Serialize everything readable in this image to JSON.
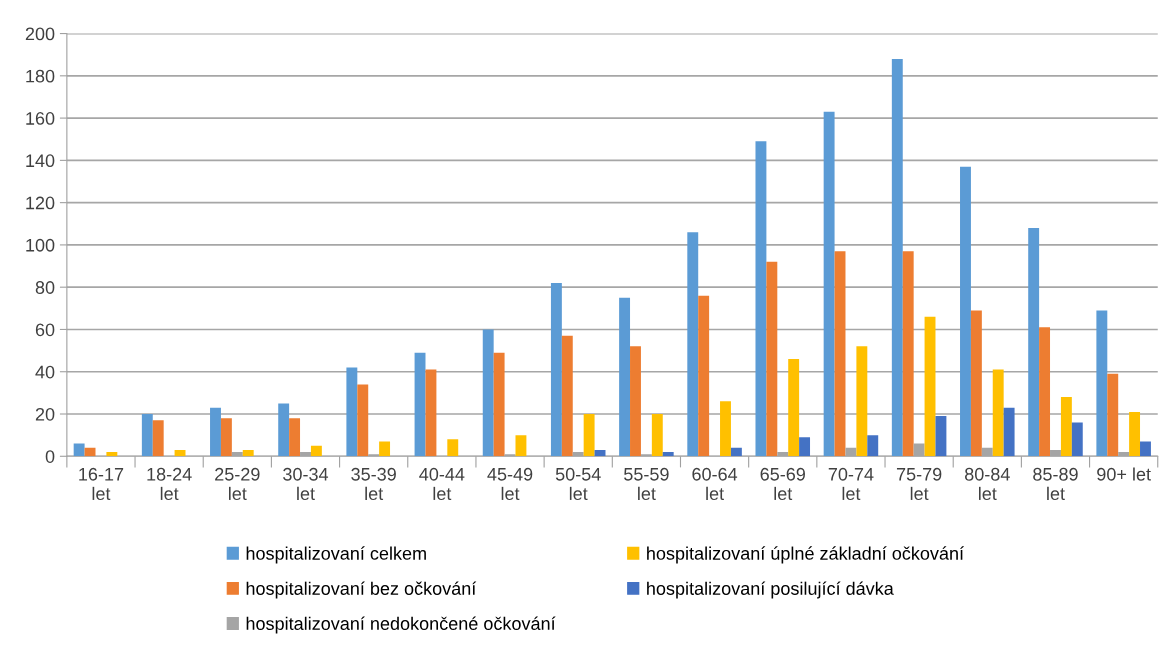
{
  "chart_data": {
    "type": "bar",
    "categories": [
      "16-17 let",
      "18-24 let",
      "25-29 let",
      "30-34 let",
      "35-39 let",
      "40-44 let",
      "45-49 let",
      "50-54 let",
      "55-59 let",
      "60-64 let",
      "65-69 let",
      "70-74 let",
      "75-79 let",
      "80-84 let",
      "85-89 let",
      "90+ let"
    ],
    "series": [
      {
        "name": "hospitalizovaní celkem",
        "color": "#5b9bd5",
        "values": [
          6,
          20,
          23,
          25,
          42,
          49,
          60,
          82,
          75,
          106,
          149,
          163,
          188,
          137,
          108,
          69
        ]
      },
      {
        "name": "hospitalizovaní bez očkování",
        "color": "#ed7d31",
        "values": [
          4,
          17,
          18,
          18,
          34,
          41,
          49,
          57,
          52,
          76,
          92,
          97,
          97,
          69,
          61,
          39
        ]
      },
      {
        "name": "hospitalizovaní nedokončené očkování",
        "color": "#a5a5a5",
        "values": [
          0,
          0,
          2,
          2,
          1,
          0,
          1,
          2,
          1,
          0,
          2,
          4,
          6,
          4,
          3,
          2
        ]
      },
      {
        "name": "hospitalizovaní úplné základní očkování",
        "color": "#ffc000",
        "values": [
          2,
          3,
          3,
          5,
          7,
          8,
          10,
          20,
          20,
          26,
          46,
          52,
          66,
          41,
          28,
          21
        ]
      },
      {
        "name": "hospitalizovaní posilující dávka",
        "color": "#4472c4",
        "values": [
          0,
          0,
          0,
          0,
          0,
          0,
          0,
          3,
          2,
          4,
          9,
          10,
          19,
          23,
          16,
          7
        ]
      }
    ],
    "ylim": [
      0,
      200
    ],
    "yticks": [
      0,
      20,
      40,
      60,
      80,
      100,
      120,
      140,
      160,
      180,
      200
    ],
    "grid": "y",
    "legend": "bottom"
  }
}
